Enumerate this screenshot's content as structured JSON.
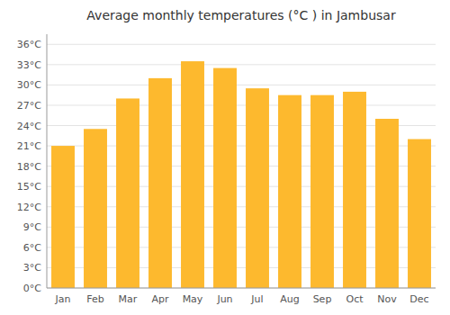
{
  "chart_data": {
    "type": "bar",
    "title": "Average monthly temperatures (°C ) in Jambusar",
    "categories": [
      "Jan",
      "Feb",
      "Mar",
      "Apr",
      "May",
      "Jun",
      "Jul",
      "Aug",
      "Sep",
      "Oct",
      "Nov",
      "Dec"
    ],
    "values": [
      21,
      23.5,
      28,
      31,
      33.5,
      32.5,
      29.5,
      28.5,
      28.5,
      29,
      25,
      22
    ],
    "color": "#FDB92E",
    "ylim": [
      0,
      37.5
    ],
    "yticks": [
      {
        "value": 0,
        "label": "0°C"
      },
      {
        "value": 3,
        "label": "3°C"
      },
      {
        "value": 6,
        "label": "6°C"
      },
      {
        "value": 9,
        "label": "9°C"
      },
      {
        "value": 12,
        "label": "12°C"
      },
      {
        "value": 15,
        "label": "15°C"
      },
      {
        "value": 18,
        "label": "18°C"
      },
      {
        "value": 21,
        "label": "21°C"
      },
      {
        "value": 24,
        "label": "24°C"
      },
      {
        "value": 27,
        "label": "27°C"
      },
      {
        "value": 30,
        "label": "30°C"
      },
      {
        "value": 33,
        "label": "33°C"
      },
      {
        "value": 36,
        "label": "36°C"
      }
    ],
    "grid": true
  }
}
